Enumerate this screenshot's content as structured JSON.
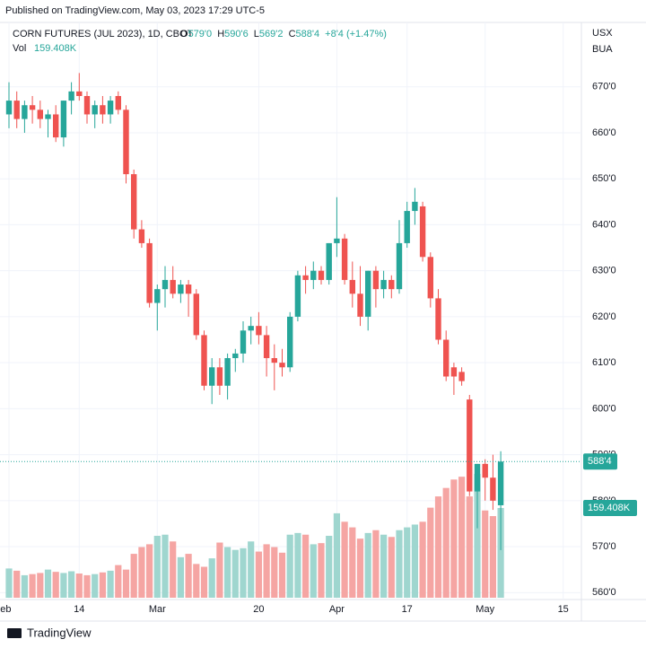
{
  "chart_data": {
    "type": "candlestick",
    "published": "Published on TradingView.com, May 03, 2023 17:29 UTC-5",
    "symbol": "CORN FUTURES (JUL 2023), 1D, CBOT",
    "o_label": "O",
    "o_text": "579'0",
    "h_label": "H",
    "h_text": "590'6",
    "l_label": "L",
    "l_text": "569'2",
    "c_label": "C",
    "c_text": "588'4",
    "change_text": "+8'4 (+1.47%)",
    "vol_label": "Vol",
    "last_volume_label": "159.408K",
    "last_price_label": "588'4",
    "unit_top": "USX",
    "unit_bottom": "BUA",
    "brand": "TradingView",
    "categories": [
      "Feb",
      null,
      null,
      null,
      null,
      null,
      null,
      null,
      null,
      "14",
      null,
      null,
      null,
      null,
      null,
      null,
      null,
      null,
      null,
      "Mar",
      null,
      null,
      null,
      null,
      null,
      null,
      null,
      null,
      null,
      null,
      null,
      null,
      "20",
      null,
      null,
      null,
      null,
      null,
      null,
      null,
      null,
      null,
      "Apr",
      null,
      null,
      null,
      null,
      null,
      null,
      null,
      null,
      "17",
      null,
      null,
      null,
      null,
      null,
      null,
      null,
      null,
      null,
      "May",
      null,
      null,
      null,
      null,
      null,
      null,
      null,
      null,
      null,
      "15"
    ],
    "open": [
      664,
      667,
      663,
      666,
      665,
      663,
      664,
      659,
      667,
      669,
      668,
      664,
      666,
      664,
      668,
      665,
      651,
      639,
      636,
      623,
      626,
      628,
      625,
      627,
      625,
      616,
      605,
      609,
      605,
      611,
      612,
      617,
      618,
      616,
      611,
      610,
      609,
      620,
      629,
      628,
      630,
      628,
      636,
      637,
      628,
      625,
      620,
      630,
      626,
      628,
      626,
      636,
      643,
      644,
      633,
      624,
      615,
      609,
      608,
      602,
      582,
      588,
      585,
      579,
      null,
      null,
      null,
      null,
      null,
      null,
      null,
      null
    ],
    "high": [
      671,
      669,
      667,
      668,
      667,
      665,
      666,
      667,
      671,
      673,
      669,
      667,
      668,
      668,
      669,
      666,
      652,
      641,
      637,
      627,
      631,
      631,
      628,
      628,
      626,
      617,
      611,
      611,
      612,
      613,
      619,
      620,
      621,
      618,
      614,
      613,
      621,
      630,
      631,
      632,
      631,
      636,
      646,
      638,
      632,
      631,
      630,
      631,
      630,
      629,
      641,
      645,
      648,
      645,
      634,
      626,
      617,
      610,
      609,
      603,
      588,
      589,
      590,
      590.75,
      null,
      null,
      null,
      null,
      null,
      null,
      null,
      null
    ],
    "low": [
      661,
      661,
      660,
      662,
      661,
      659,
      658,
      657,
      664,
      667,
      662,
      661,
      662,
      662,
      664,
      649,
      637,
      635,
      622,
      617,
      622,
      624,
      623,
      620,
      615,
      604,
      601,
      603,
      602,
      608,
      610,
      614,
      614,
      607,
      604,
      607,
      608,
      619,
      625,
      626,
      627,
      627,
      633,
      627,
      622,
      618,
      617,
      622,
      624,
      624,
      625,
      635,
      640,
      632,
      622,
      614,
      606,
      603,
      605,
      581,
      574,
      580,
      578,
      569.25,
      null,
      null,
      null,
      null,
      null,
      null,
      null,
      null
    ],
    "close": [
      667,
      663,
      666,
      665,
      663,
      664,
      659,
      667,
      669,
      668,
      664,
      666,
      664,
      667,
      665,
      651,
      639,
      636,
      623,
      626,
      628,
      625,
      627,
      625,
      616,
      605,
      609,
      605,
      611,
      612,
      617,
      618,
      616,
      611,
      610,
      609,
      620,
      629,
      628,
      630,
      628,
      636,
      637,
      628,
      625,
      620,
      630,
      626,
      628,
      626,
      636,
      643,
      645,
      633,
      624,
      615,
      607,
      607,
      606,
      582,
      588,
      585,
      580,
      588.5,
      null,
      null,
      null,
      null,
      null,
      null,
      null,
      null
    ],
    "volume": [
      52,
      48,
      40,
      42,
      44,
      50,
      46,
      44,
      47,
      43,
      40,
      42,
      45,
      48,
      58,
      50,
      78,
      90,
      95,
      110,
      112,
      100,
      72,
      78,
      60,
      55,
      70,
      98,
      90,
      85,
      88,
      100,
      82,
      95,
      90,
      80,
      112,
      115,
      112,
      95,
      97,
      110,
      150,
      135,
      125,
      105,
      115,
      120,
      112,
      108,
      120,
      125,
      130,
      135,
      160,
      180,
      195,
      210,
      215,
      180,
      220,
      155,
      145,
      159.408,
      null,
      null,
      null,
      null,
      null,
      null,
      null,
      null
    ],
    "up_color": "#26a69a",
    "down_color": "#ef5350",
    "up_volume_color": "#9fd6cf",
    "down_volume_color": "#f5a5a3",
    "ylim": [
      558.5,
      684
    ],
    "yticks": [
      {
        "value": 560,
        "label": "560'0"
      },
      {
        "value": 570,
        "label": "570'0"
      },
      {
        "value": 580,
        "label": "580'0"
      },
      {
        "value": 590,
        "label": "590'0"
      },
      {
        "value": 600,
        "label": "600'0"
      },
      {
        "value": 610,
        "label": "610'0"
      },
      {
        "value": 620,
        "label": "620'0"
      },
      {
        "value": 630,
        "label": "630'0"
      },
      {
        "value": 640,
        "label": "640'0"
      },
      {
        "value": 650,
        "label": "650'0"
      },
      {
        "value": 660,
        "label": "660'0"
      },
      {
        "value": 670,
        "label": "670'0"
      }
    ],
    "grid": true
  }
}
